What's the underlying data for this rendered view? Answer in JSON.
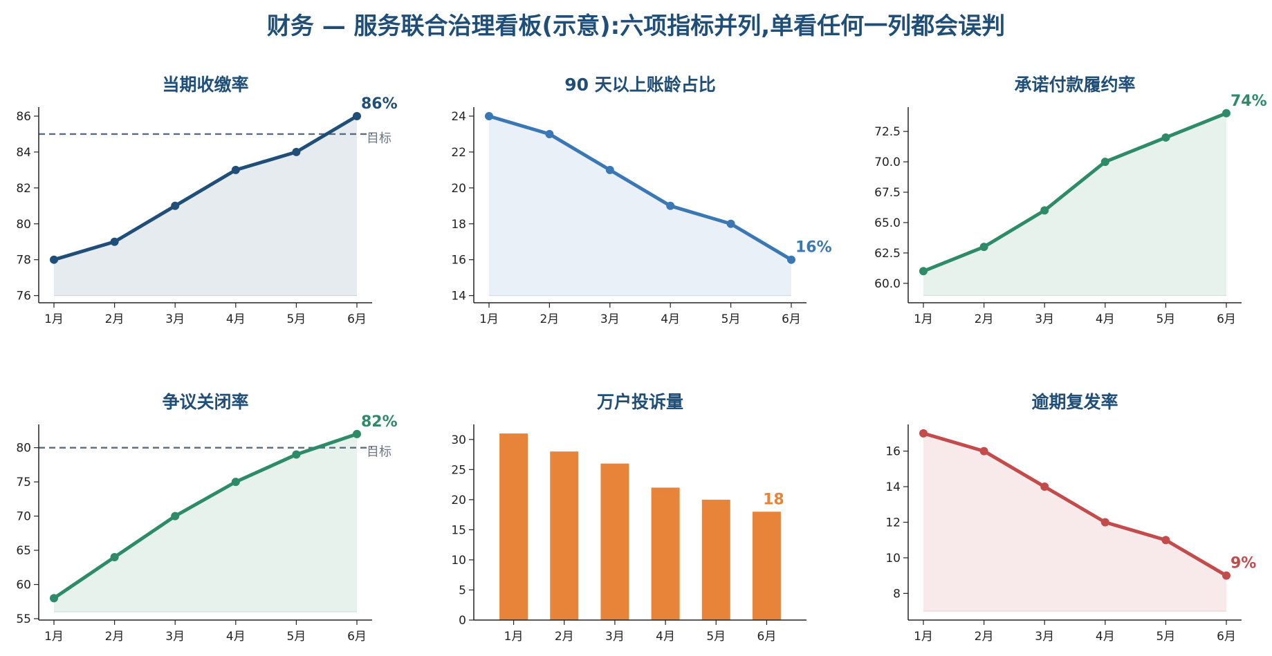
{
  "page_title": "财务 — 服务联合治理看板(示意):六项指标并列,单看任何一列都会误判",
  "chart_data": [
    {
      "type": "line",
      "title": "当期收缴率",
      "categories": [
        "1月",
        "2月",
        "3月",
        "4月",
        "5月",
        "6月"
      ],
      "values": [
        78,
        79,
        81,
        83,
        84,
        86
      ],
      "ylim": [
        75.6,
        86.5
      ],
      "yticks": [
        76,
        78,
        80,
        82,
        84,
        86
      ],
      "area_base": 76,
      "target": {
        "value": 85,
        "label": "目标"
      },
      "end_label": "86%",
      "color": "#1f4e79",
      "fill": "#e6ebf0"
    },
    {
      "type": "line",
      "title": "90 天以上账龄占比",
      "categories": [
        "1月",
        "2月",
        "3月",
        "4月",
        "5月",
        "6月"
      ],
      "values": [
        24,
        23,
        21,
        19,
        18,
        16
      ],
      "ylim": [
        13.6,
        24.5
      ],
      "yticks": [
        14,
        16,
        18,
        20,
        22,
        24
      ],
      "area_base": 14,
      "end_label": "16%",
      "color": "#3a78b5",
      "fill": "#eaf0f7"
    },
    {
      "type": "line",
      "title": "承诺付款履约率",
      "categories": [
        "1月",
        "2月",
        "3月",
        "4月",
        "5月",
        "6月"
      ],
      "values": [
        61,
        63,
        66,
        70,
        72,
        74
      ],
      "ylim": [
        58.4,
        74.5
      ],
      "yticks": [
        60.0,
        62.5,
        65.0,
        67.5,
        70.0,
        72.5
      ],
      "tick_decimals": 1,
      "area_base": 59,
      "end_label": "74%",
      "color": "#2e8b68",
      "fill": "#e7f2ed"
    },
    {
      "type": "line",
      "title": "争议关闭率",
      "categories": [
        "1月",
        "2月",
        "3月",
        "4月",
        "5月",
        "6月"
      ],
      "values": [
        58,
        64,
        70,
        75,
        79,
        82
      ],
      "ylim": [
        54.8,
        83.4
      ],
      "yticks": [
        55,
        60,
        65,
        70,
        75,
        80
      ],
      "area_base": 56,
      "target": {
        "value": 80,
        "label": "目标"
      },
      "end_label": "82%",
      "color": "#2e8b68",
      "fill": "#e7f2ed"
    },
    {
      "type": "bar",
      "title": "万户投诉量",
      "categories": [
        "1月",
        "2月",
        "3月",
        "4月",
        "5月",
        "6月"
      ],
      "values": [
        31,
        28,
        26,
        22,
        20,
        18
      ],
      "ylim": [
        0,
        32.5
      ],
      "yticks": [
        0,
        5,
        10,
        15,
        20,
        25,
        30
      ],
      "end_label": "18",
      "color": "#e8843a"
    },
    {
      "type": "line",
      "title": "逾期复发率",
      "categories": [
        "1月",
        "2月",
        "3月",
        "4月",
        "5月",
        "6月"
      ],
      "values": [
        17,
        16,
        14,
        12,
        11,
        9
      ],
      "ylim": [
        6.5,
        17.5
      ],
      "yticks": [
        8,
        10,
        12,
        14,
        16
      ],
      "area_base": 7,
      "end_label": "9%",
      "color": "#c44b4b",
      "fill": "#f8eaea"
    }
  ]
}
